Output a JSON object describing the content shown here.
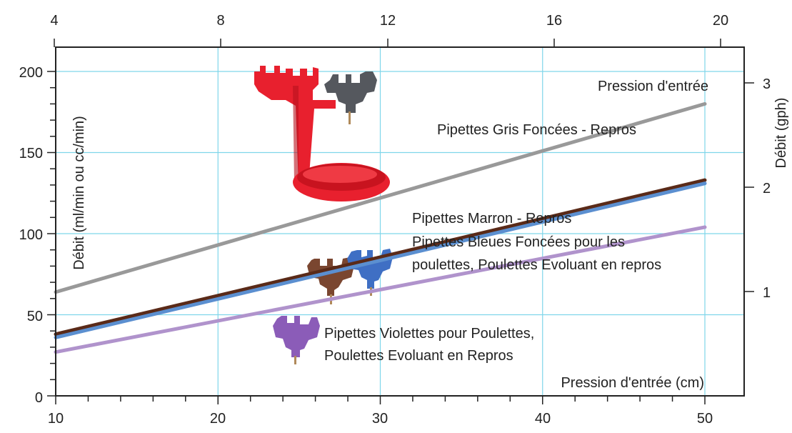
{
  "chart_data": {
    "type": "line",
    "title": "",
    "x": [
      10,
      50
    ],
    "xlabel": "Pression d'entrée (cm)",
    "xlim": [
      10,
      52
    ],
    "x_ticks": [
      "10",
      "20",
      "30",
      "40",
      "50"
    ],
    "ylabel": "Débit (ml/min ou cc/min)",
    "ylim": [
      0,
      205
    ],
    "y_ticks": [
      "0",
      "50",
      "100",
      "150",
      "200"
    ],
    "top_axis": {
      "label": "Pression d'entrée",
      "ticks": [
        "4",
        "8",
        "12",
        "16",
        "20"
      ]
    },
    "right_axis": {
      "label": "Débit (gph)",
      "ticks": [
        "1",
        "2",
        "3"
      ]
    },
    "grid": true,
    "series": [
      {
        "name": "Pipettes Gris Foncées - Repros",
        "values": [
          64,
          180
        ],
        "color": "#999999"
      },
      {
        "name": "Pipettes Marron - Repros",
        "values": [
          38,
          133
        ],
        "color": "#5a2a18"
      },
      {
        "name": "Pipettes Bleues Foncées pour les poulettes, Poulettes Evoluant en repros",
        "values": [
          36,
          131
        ],
        "color": "#5b8fd0"
      },
      {
        "name": "Pipettes Violettes pour Poulettes, Poulettes Evoluant en Repros",
        "values": [
          27,
          104
        ],
        "color": "#b093cc"
      }
    ],
    "annotations": {
      "grey": "Pipettes Gris Foncées - Repros",
      "brown": "Pipettes Marron - Repros",
      "blue_line1": "Pipettes Bleues Foncées pour les",
      "blue_line2": "poulettes, Poulettes Evoluant en repros",
      "violet_line1": "Pipettes Violettes pour Poulettes,",
      "violet_line2": "Poulettes Evoluant en Repros"
    }
  },
  "colors": {
    "grid": "#7fd6ea",
    "axis": "#222222",
    "drinker_red": "#e8202e",
    "nipple_grey": "#55585e",
    "nipple_brown": "#7a4630",
    "nipple_blue": "#3f6fc4",
    "nipple_violet": "#8b5cb8"
  }
}
